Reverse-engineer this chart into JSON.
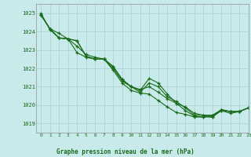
{
  "title": "Graphe pression niveau de la mer (hPa)",
  "bg_color": "#c8eaea",
  "grid_color": "#b0d4d4",
  "line_color": "#1a6b1a",
  "xlim": [
    -0.5,
    23
  ],
  "ylim": [
    1018.5,
    1025.5
  ],
  "yticks": [
    1019,
    1020,
    1021,
    1022,
    1023,
    1024,
    1025
  ],
  "xticks": [
    0,
    1,
    2,
    3,
    4,
    5,
    6,
    7,
    8,
    9,
    10,
    11,
    12,
    13,
    14,
    15,
    16,
    17,
    18,
    19,
    20,
    21,
    22,
    23
  ],
  "series1": [
    1024.9,
    1024.15,
    1023.9,
    1023.6,
    1023.2,
    1022.75,
    1022.6,
    1022.5,
    1022.1,
    1021.4,
    1021.0,
    1020.85,
    1021.0,
    1020.7,
    1020.35,
    1020.1,
    1019.9,
    1019.55,
    1019.45,
    1019.45,
    1019.75,
    1019.65,
    1019.65,
    1019.85
  ],
  "series2": [
    1024.9,
    1024.15,
    1023.65,
    1023.6,
    1023.5,
    1022.65,
    1022.5,
    1022.5,
    1022.0,
    1021.3,
    1021.0,
    1020.7,
    1021.2,
    1021.0,
    1020.45,
    1020.2,
    1019.85,
    1019.45,
    1019.45,
    1019.35,
    1019.75,
    1019.65,
    1019.65,
    1019.85
  ],
  "series3": [
    1024.9,
    1024.15,
    1023.65,
    1023.6,
    1022.85,
    1022.6,
    1022.5,
    1022.5,
    1022.1,
    1021.4,
    1021.0,
    1020.8,
    1021.45,
    1021.2,
    1020.6,
    1020.1,
    1019.7,
    1019.4,
    1019.35,
    1019.45,
    1019.7,
    1019.65,
    1019.65,
    1019.85
  ],
  "series4": [
    1025.0,
    1024.1,
    1023.65,
    1023.6,
    1023.5,
    1022.65,
    1022.5,
    1022.5,
    1021.9,
    1021.2,
    1020.8,
    1020.65,
    1020.6,
    1020.25,
    1019.9,
    1019.6,
    1019.5,
    1019.35,
    1019.35,
    1019.35,
    1019.7,
    1019.55,
    1019.65,
    1019.85
  ]
}
